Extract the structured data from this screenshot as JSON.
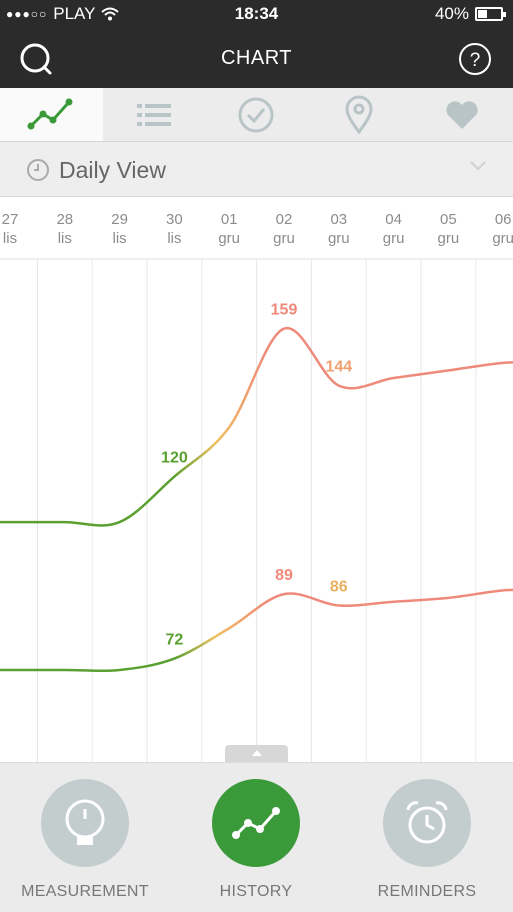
{
  "status": {
    "carrier": "PLAY",
    "time": "18:34",
    "battery": "40%",
    "battery_level": 0.4
  },
  "nav": {
    "title": "CHART",
    "left_icon": "search-icon",
    "right_icon": "help-icon"
  },
  "tabs": [
    {
      "icon": "chart-icon",
      "active": true
    },
    {
      "icon": "list-icon",
      "active": false
    },
    {
      "icon": "check-circle-icon",
      "active": false
    },
    {
      "icon": "map-pin-icon",
      "active": false
    },
    {
      "icon": "heart-icon",
      "active": false
    }
  ],
  "view": {
    "label": "Daily View",
    "icon": "clock-icon"
  },
  "chart_data": {
    "type": "line",
    "x": [
      {
        "day": "27",
        "month": "lis"
      },
      {
        "day": "28",
        "month": "lis"
      },
      {
        "day": "29",
        "month": "lis"
      },
      {
        "day": "30",
        "month": "lis"
      },
      {
        "day": "01",
        "month": "gru"
      },
      {
        "day": "02",
        "month": "gru"
      },
      {
        "day": "03",
        "month": "gru"
      },
      {
        "day": "04",
        "month": "gru"
      },
      {
        "day": "05",
        "month": "gru"
      },
      {
        "day": "06",
        "month": "gru"
      }
    ],
    "series": [
      {
        "values": [
          108,
          108,
          108,
          120,
          133,
          159,
          144,
          146,
          148,
          150
        ]
      },
      {
        "values": [
          69,
          69,
          69,
          72,
          80,
          89,
          86,
          87,
          88,
          90
        ]
      }
    ],
    "data_labels": [
      {
        "series": 0,
        "index": 3,
        "text": "120",
        "color": "#5aa030"
      },
      {
        "series": 0,
        "index": 5,
        "text": "159",
        "color": "#ef8a7a"
      },
      {
        "series": 0,
        "index": 6,
        "text": "144",
        "color": "#f0a070"
      },
      {
        "series": 1,
        "index": 3,
        "text": "72",
        "color": "#5aa030"
      },
      {
        "series": 1,
        "index": 5,
        "text": "89",
        "color": "#ef8a7a"
      },
      {
        "series": 1,
        "index": 6,
        "text": "86",
        "color": "#e8b060"
      }
    ],
    "colors": {
      "low": "#5aa030",
      "mid": "#f0c060",
      "high": "#ef8a7a"
    }
  },
  "bottom": {
    "items": [
      {
        "label": "MEASUREMENT",
        "icon": "gauge-icon",
        "active": false
      },
      {
        "label": "HISTORY",
        "icon": "chart-icon",
        "active": true
      },
      {
        "label": "REMINDERS",
        "icon": "alarm-clock-icon",
        "active": false
      }
    ]
  },
  "colors": {
    "active": "#3a9a3a",
    "inactive": "#c3cdce",
    "bar": "#2b2b2b"
  }
}
